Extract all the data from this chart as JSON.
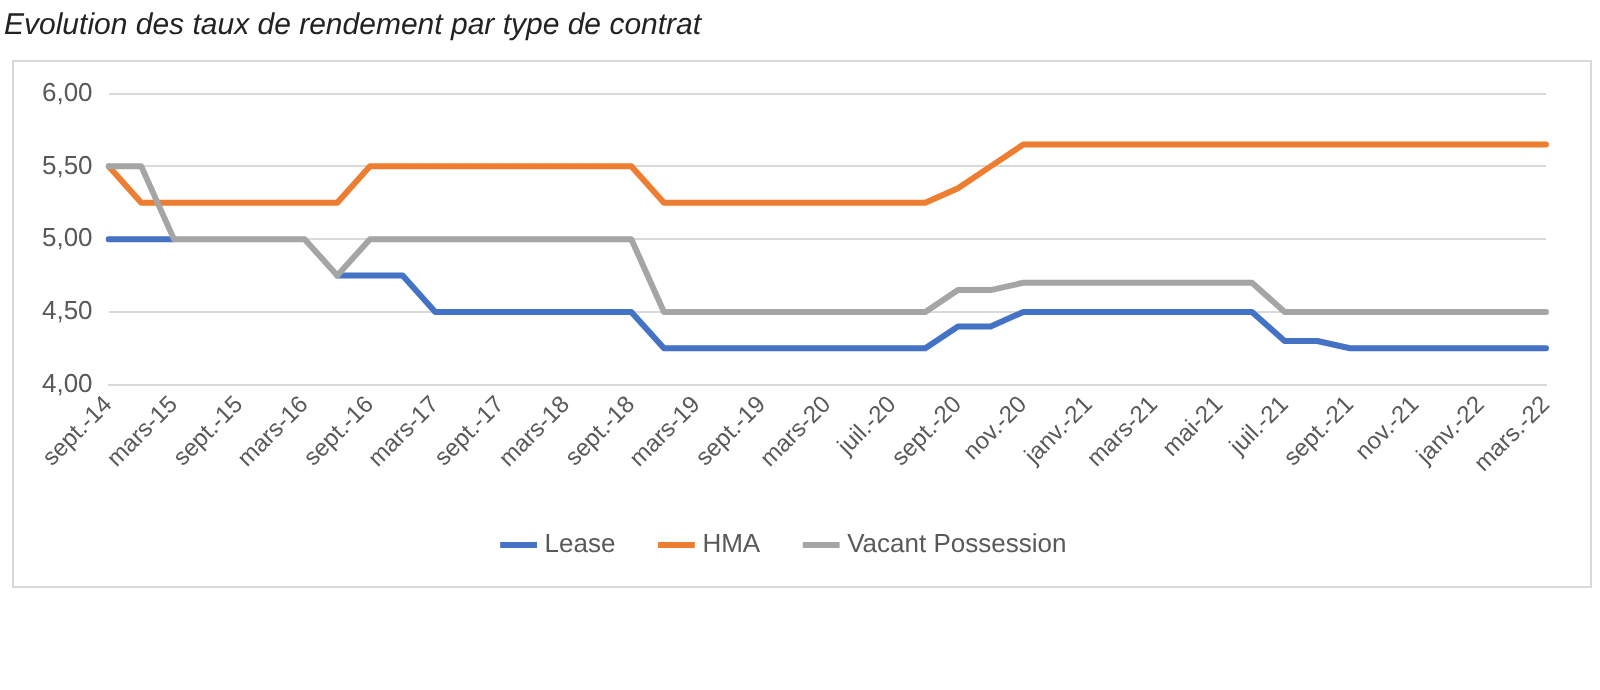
{
  "chart_data": {
    "type": "line",
    "title": "Evolution des taux de rendement par type de contrat",
    "categories": [
      "sept.-14",
      null,
      "mars-15",
      null,
      "sept.-15",
      null,
      "mars-16",
      null,
      "sept.-16",
      null,
      "mars-17",
      null,
      "sept.-17",
      null,
      "mars-18",
      null,
      "sept.-18",
      null,
      "mars-19",
      null,
      "sept.-19",
      null,
      "mars-20",
      null,
      "juil.-20",
      null,
      "sept.-20",
      null,
      "nov.-20",
      null,
      "janv.-21",
      null,
      "mars-21",
      null,
      "mai-21",
      null,
      "juil.-21",
      null,
      "sept.-21",
      null,
      "nov.-21",
      null,
      "janv.-22",
      null,
      "mars.-22"
    ],
    "series": [
      {
        "name": "Lease",
        "color": "#4472c4",
        "values": [
          5.0,
          5.0,
          5.0,
          null,
          null,
          null,
          null,
          4.75,
          4.75,
          4.75,
          4.5,
          4.5,
          4.5,
          4.5,
          4.5,
          4.5,
          4.5,
          4.25,
          4.25,
          4.25,
          4.25,
          4.25,
          4.25,
          4.25,
          4.25,
          4.25,
          4.4,
          4.4,
          4.5,
          4.5,
          4.5,
          4.5,
          4.5,
          4.5,
          4.5,
          4.5,
          4.3,
          4.3,
          4.25,
          4.25,
          4.25,
          4.25,
          4.25,
          4.25,
          4.25
        ]
      },
      {
        "name": "HMA",
        "color": "#ed7d31",
        "values": [
          5.5,
          5.25,
          5.25,
          5.25,
          5.25,
          5.25,
          5.25,
          5.25,
          5.5,
          5.5,
          5.5,
          5.5,
          5.5,
          5.5,
          5.5,
          5.5,
          5.5,
          5.25,
          5.25,
          5.25,
          5.25,
          5.25,
          5.25,
          5.25,
          5.25,
          5.25,
          5.35,
          5.5,
          5.65,
          5.65,
          5.65,
          5.65,
          5.65,
          5.65,
          5.65,
          5.65,
          5.65,
          5.65,
          5.65,
          5.65,
          5.65,
          5.65,
          5.65,
          5.65,
          5.65
        ]
      },
      {
        "name": "Vacant Possession",
        "color": "#a5a5a5",
        "values": [
          5.5,
          5.5,
          5.0,
          5.0,
          5.0,
          5.0,
          5.0,
          4.75,
          5.0,
          5.0,
          5.0,
          5.0,
          5.0,
          5.0,
          5.0,
          5.0,
          5.0,
          4.5,
          4.5,
          4.5,
          4.5,
          4.5,
          4.5,
          4.5,
          4.5,
          4.5,
          4.65,
          4.65,
          4.7,
          4.7,
          4.7,
          4.7,
          4.7,
          4.7,
          4.7,
          4.7,
          4.5,
          4.5,
          4.5,
          4.5,
          4.5,
          4.5,
          4.5,
          4.5,
          4.5
        ]
      }
    ],
    "ylim": [
      4.0,
      6.0
    ],
    "yticks": [
      {
        "value": 4.0,
        "label": "4,00"
      },
      {
        "value": 4.5,
        "label": "4,50"
      },
      {
        "value": 5.0,
        "label": "5,00"
      },
      {
        "value": 5.5,
        "label": "5,50"
      },
      {
        "value": 6.0,
        "label": "6,00"
      }
    ],
    "grid": "y",
    "legend": "bottom",
    "marker": "none",
    "line_style": "solid"
  }
}
